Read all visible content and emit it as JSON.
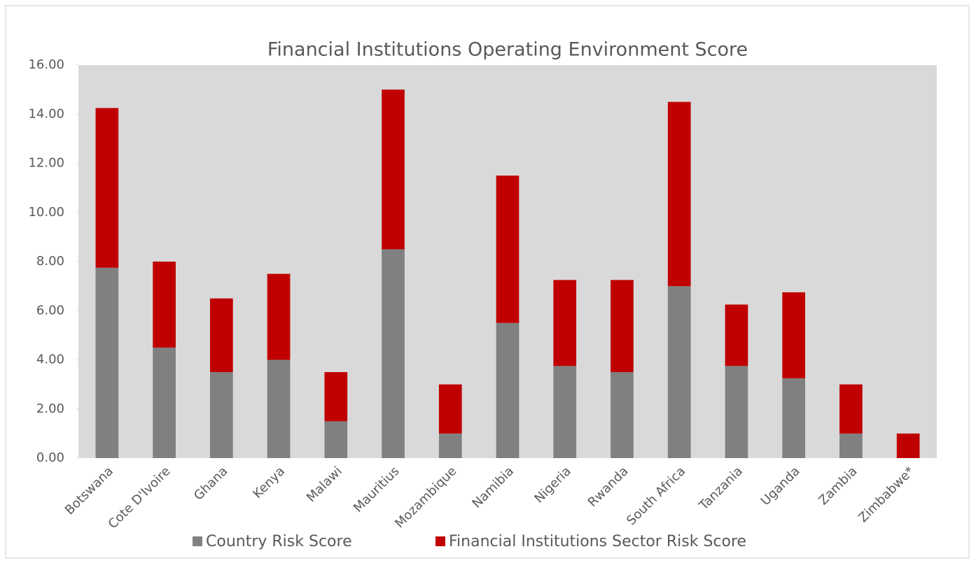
{
  "chart_data": {
    "type": "stacked_bar",
    "title": "Financial Institutions Operating Environment Score",
    "categories": [
      "Botswana",
      "Cote D'Ivoire",
      "Ghana",
      "Kenya",
      "Malawi",
      "Mauritius",
      "Mozambique",
      "Namibia",
      "Nigeria",
      "Rwanda",
      "South Africa",
      "Tanzania",
      "Uganda",
      "Zambia",
      "Zimbabwe*"
    ],
    "series": [
      {
        "name": "Country Risk Score",
        "color": "#808080",
        "values": [
          7.75,
          4.5,
          3.5,
          4,
          1.5,
          8.5,
          1,
          5.5,
          3.75,
          3.5,
          7,
          3.75,
          3.25,
          1,
          0
        ]
      },
      {
        "name": "Financial Institutions Sector Risk Score",
        "color": "#c00000",
        "values": [
          6.5,
          3.5,
          3,
          3.5,
          2,
          6.5,
          2,
          6,
          3.5,
          3.75,
          7.5,
          2.5,
          3.5,
          2,
          1
        ]
      }
    ],
    "ylim": [
      0,
      16
    ],
    "yticks": [
      {
        "value": 0,
        "label": "0.00"
      },
      {
        "value": 2,
        "label": "2.00"
      },
      {
        "value": 4,
        "label": "4.00"
      },
      {
        "value": 6,
        "label": "6.00"
      },
      {
        "value": 8,
        "label": "8.00"
      },
      {
        "value": 10,
        "label": "10.00"
      },
      {
        "value": 12,
        "label": "12.00"
      },
      {
        "value": 14,
        "label": "14.00"
      },
      {
        "value": 16,
        "label": "16.00"
      }
    ],
    "legend": "bottom"
  }
}
